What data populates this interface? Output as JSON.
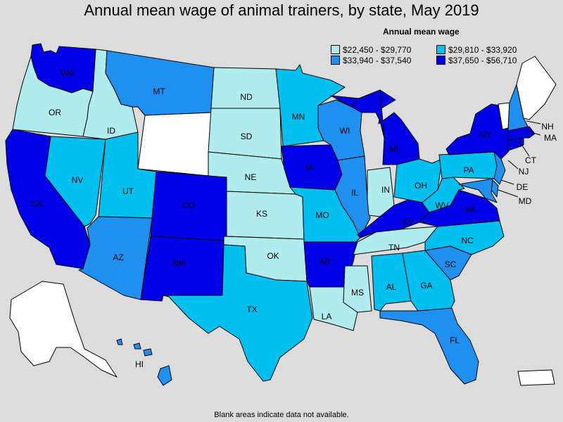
{
  "title": "Annual mean wage of animal trainers, by state, May 2019",
  "legend": {
    "title": "Annual mean wage",
    "items": [
      {
        "label": "$22,450 - $29,770",
        "color": "#b0ecee"
      },
      {
        "label": "$29,810 - $33,920",
        "color": "#00c0f0"
      },
      {
        "label": "$33,940 - $37,540",
        "color": "#2090f0"
      },
      {
        "label": "$37,650 - $56,710",
        "color": "#0000e8"
      }
    ]
  },
  "footnote": "Blank areas indicate data not available.",
  "no_data_color": "#ffffff",
  "states": [
    {
      "id": "WA",
      "label": "WA",
      "tier": 3
    },
    {
      "id": "OR",
      "label": "OR",
      "tier": 0
    },
    {
      "id": "CA",
      "label": "CA",
      "tier": 3
    },
    {
      "id": "ID",
      "label": "ID",
      "tier": 0
    },
    {
      "id": "NV",
      "label": "NV",
      "tier": 1
    },
    {
      "id": "MT",
      "label": "MT",
      "tier": 2
    },
    {
      "id": "WY",
      "label": "",
      "tier": -1
    },
    {
      "id": "UT",
      "label": "UT",
      "tier": 1
    },
    {
      "id": "AZ",
      "label": "AZ",
      "tier": 2
    },
    {
      "id": "CO",
      "label": "CO",
      "tier": 3
    },
    {
      "id": "NM",
      "label": "NM",
      "tier": 3
    },
    {
      "id": "ND",
      "label": "ND",
      "tier": 0
    },
    {
      "id": "SD",
      "label": "SD",
      "tier": 0
    },
    {
      "id": "NE",
      "label": "NE",
      "tier": 0
    },
    {
      "id": "KS",
      "label": "KS",
      "tier": 0
    },
    {
      "id": "OK",
      "label": "OK",
      "tier": 0
    },
    {
      "id": "TX",
      "label": "TX",
      "tier": 1
    },
    {
      "id": "MN",
      "label": "MN",
      "tier": 1
    },
    {
      "id": "IA",
      "label": "IA",
      "tier": 3
    },
    {
      "id": "MO",
      "label": "MO",
      "tier": 1
    },
    {
      "id": "AR",
      "label": "AR",
      "tier": 3
    },
    {
      "id": "LA",
      "label": "LA",
      "tier": 0
    },
    {
      "id": "WI",
      "label": "WI",
      "tier": 2
    },
    {
      "id": "IL",
      "label": "IL",
      "tier": 2
    },
    {
      "id": "MI",
      "label": "MI",
      "tier": 3
    },
    {
      "id": "IN",
      "label": "IN",
      "tier": 0
    },
    {
      "id": "OH",
      "label": "OH",
      "tier": 1
    },
    {
      "id": "KY",
      "label": "KY",
      "tier": 3
    },
    {
      "id": "TN",
      "label": "TN",
      "tier": 0
    },
    {
      "id": "MS",
      "label": "MS",
      "tier": 0
    },
    {
      "id": "AL",
      "label": "AL",
      "tier": 1
    },
    {
      "id": "GA",
      "label": "GA",
      "tier": 1
    },
    {
      "id": "FL",
      "label": "FL",
      "tier": 2
    },
    {
      "id": "SC",
      "label": "SC",
      "tier": 2
    },
    {
      "id": "NC",
      "label": "NC",
      "tier": 1
    },
    {
      "id": "VA",
      "label": "VA",
      "tier": 3
    },
    {
      "id": "WV",
      "label": "WV",
      "tier": 1
    },
    {
      "id": "PA",
      "label": "PA",
      "tier": 1
    },
    {
      "id": "NY",
      "label": "NY",
      "tier": 3
    },
    {
      "id": "NJ",
      "label": "NJ",
      "tier": 2
    },
    {
      "id": "DE",
      "label": "DE",
      "tier": 2
    },
    {
      "id": "MD",
      "label": "MD",
      "tier": 2
    },
    {
      "id": "CT",
      "label": "CT",
      "tier": 3
    },
    {
      "id": "MA",
      "label": "MA",
      "tier": 3
    },
    {
      "id": "VT",
      "label": "",
      "tier": -1
    },
    {
      "id": "NH",
      "label": "NH",
      "tier": 2
    },
    {
      "id": "ME",
      "label": "",
      "tier": -1
    },
    {
      "id": "RI",
      "label": "",
      "tier": 3
    },
    {
      "id": "AK",
      "label": "",
      "tier": -1
    },
    {
      "id": "HI",
      "label": "HI",
      "tier": 2
    },
    {
      "id": "PR",
      "label": "",
      "tier": -1
    }
  ]
}
